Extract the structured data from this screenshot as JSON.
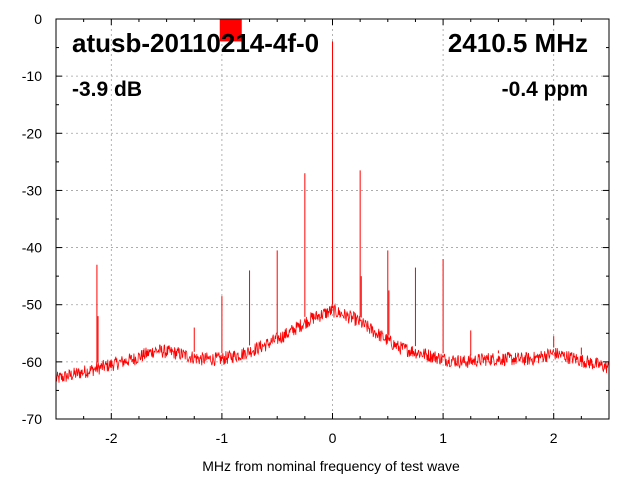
{
  "chart_data": {
    "type": "line",
    "xlabel": "MHz from nominal frequency of test wave",
    "ylabel": "",
    "xlim": [
      -2.5,
      2.5
    ],
    "ylim": [
      -70,
      0
    ],
    "x_ticks": [
      -2,
      -1,
      0,
      1,
      2
    ],
    "x_tick_labels": [
      "-2",
      "-1",
      "0",
      "1",
      "2"
    ],
    "y_ticks": [
      0,
      -10,
      -20,
      -30,
      -40,
      -50,
      -60,
      -70
    ],
    "y_tick_labels": [
      "0",
      "-10",
      "-20",
      "-30",
      "-40",
      "-50",
      "-60",
      "-70"
    ],
    "grid": true,
    "series_color": "#ff0000",
    "annotations": {
      "device": "atusb-20110214-4f-0",
      "frequency": "2410.5 MHz",
      "level": "-3.9 dB",
      "offset": "-0.4 ppm"
    },
    "marker": {
      "color": "#ff0000",
      "x": -0.92,
      "y": -2
    },
    "noise_floor": {
      "x": [
        -2.5,
        -2.2,
        -2.0,
        -1.8,
        -1.6,
        -1.4,
        -1.2,
        -1.0,
        -0.8,
        -0.6,
        -0.4,
        -0.2,
        0.0,
        0.2,
        0.4,
        0.6,
        0.8,
        1.0,
        1.2,
        1.4,
        1.6,
        1.8,
        2.0,
        2.2,
        2.5
      ],
      "y": [
        -63,
        -61.5,
        -60.5,
        -59.5,
        -58,
        -58.5,
        -59.5,
        -59.5,
        -58.5,
        -57,
        -55,
        -52.5,
        -51,
        -52.5,
        -55,
        -57.5,
        -58.5,
        -59.5,
        -60,
        -59.5,
        -59.5,
        -59.5,
        -58.5,
        -59.5,
        -61
      ]
    },
    "spikes": [
      {
        "x": -2.13,
        "y": -43
      },
      {
        "x": -2.12,
        "y": -52
      },
      {
        "x": -1.25,
        "y": -54
      },
      {
        "x": -1.0,
        "y": -48.5
      },
      {
        "x": -0.75,
        "y": -44
      },
      {
        "x": -0.5,
        "y": -40.5
      },
      {
        "x": -0.25,
        "y": -27
      },
      {
        "x": 0.0,
        "y": -3.9
      },
      {
        "x": 0.25,
        "y": -26.5
      },
      {
        "x": 0.26,
        "y": -45
      },
      {
        "x": 0.5,
        "y": -40.5
      },
      {
        "x": 0.51,
        "y": -47.5
      },
      {
        "x": 0.75,
        "y": -43.5
      },
      {
        "x": 1.0,
        "y": -42
      },
      {
        "x": 1.25,
        "y": -54.5
      },
      {
        "x": 1.5,
        "y": -58
      },
      {
        "x": 2.0,
        "y": -55.5
      },
      {
        "x": 2.25,
        "y": -57.5
      }
    ]
  }
}
